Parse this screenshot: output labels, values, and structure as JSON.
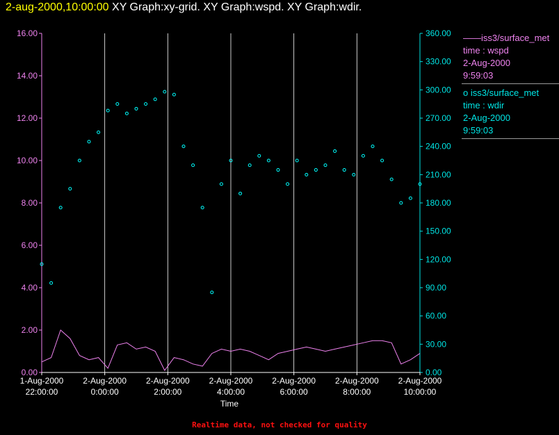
{
  "header": {
    "timestamp": "2-aug-2000,10:00:00",
    "description": "XY Graph:xy-grid.  XY Graph:wspd.  XY Graph:wdir."
  },
  "legend": {
    "series": [
      {
        "marker": "——",
        "source": "iss3/surface_met",
        "var": "time : wspd",
        "date": "2-Aug-2000",
        "time": "9:59:03"
      },
      {
        "marker": "o",
        "source": "iss3/surface_met",
        "var": "time : wdir",
        "date": "2-Aug-2000",
        "time": "9:59:03"
      }
    ]
  },
  "footer_note": "Realtime data, not checked for quality",
  "colors": {
    "wspd": "#ee82ee",
    "wdir": "#00ffff",
    "grid": "#ffffff",
    "left_axis": "#ee82ee",
    "right_axis": "#00e5e5"
  },
  "chart_data": {
    "type": "line",
    "xlabel": "Time",
    "xlim_hours": [
      0,
      12
    ],
    "x_ticks": [
      {
        "h": 0,
        "date": "1-Aug-2000",
        "time": "22:00:00"
      },
      {
        "h": 2,
        "date": "2-Aug-2000",
        "time": "0:00:00"
      },
      {
        "h": 4,
        "date": "2-Aug-2000",
        "time": "2:00:00"
      },
      {
        "h": 6,
        "date": "2-Aug-2000",
        "time": "4:00:00"
      },
      {
        "h": 8,
        "date": "2-Aug-2000",
        "time": "6:00:00"
      },
      {
        "h": 10,
        "date": "2-Aug-2000",
        "time": "8:00:00"
      },
      {
        "h": 12,
        "date": "2-Aug-2000",
        "time": "10:00:00"
      }
    ],
    "y_left": {
      "lim": [
        0,
        16
      ],
      "ticks": [
        "0.00",
        "2.00",
        "4.00",
        "6.00",
        "8.00",
        "10.00",
        "12.00",
        "14.00",
        "16.00"
      ]
    },
    "y_right": {
      "lim": [
        0,
        360
      ],
      "ticks": [
        "0.00",
        "30.00",
        "60.00",
        "90.00",
        "120.00",
        "150.00",
        "180.00",
        "210.00",
        "240.00",
        "270.00",
        "300.00",
        "330.00",
        "360.00"
      ]
    },
    "grid": "vertical",
    "series": [
      {
        "name": "wspd",
        "axis": "left",
        "style": "line",
        "x": [
          0,
          0.3,
          0.6,
          0.9,
          1.2,
          1.5,
          1.8,
          2.1,
          2.4,
          2.7,
          3.0,
          3.3,
          3.6,
          3.9,
          4.2,
          4.5,
          4.8,
          5.1,
          5.4,
          5.7,
          6.0,
          6.3,
          6.6,
          6.9,
          7.2,
          7.5,
          7.8,
          8.1,
          8.4,
          8.7,
          9.0,
          9.3,
          9.6,
          9.9,
          10.2,
          10.5,
          10.8,
          11.1,
          11.4,
          11.7,
          12.0
        ],
        "y": [
          0.5,
          0.7,
          2.0,
          1.6,
          0.8,
          0.6,
          0.7,
          0.2,
          1.3,
          1.4,
          1.1,
          1.2,
          1.0,
          0.1,
          0.7,
          0.6,
          0.4,
          0.3,
          0.9,
          1.1,
          1.0,
          1.1,
          1.0,
          0.8,
          0.6,
          0.9,
          1.0,
          1.1,
          1.2,
          1.1,
          1.0,
          1.1,
          1.2,
          1.3,
          1.4,
          1.5,
          1.5,
          1.4,
          0.4,
          0.6,
          0.9
        ]
      },
      {
        "name": "wdir",
        "axis": "right",
        "style": "points",
        "x": [
          0,
          0.3,
          0.6,
          0.9,
          1.2,
          1.5,
          1.8,
          2.1,
          2.4,
          2.7,
          3.0,
          3.3,
          3.6,
          3.9,
          4.2,
          4.5,
          4.8,
          5.1,
          5.4,
          5.7,
          6.0,
          6.3,
          6.6,
          6.9,
          7.2,
          7.5,
          7.8,
          8.1,
          8.4,
          8.7,
          9.0,
          9.3,
          9.6,
          9.9,
          10.2,
          10.5,
          10.8,
          11.1,
          11.4,
          11.7,
          12.0
        ],
        "y": [
          115,
          95,
          175,
          195,
          225,
          245,
          255,
          278,
          285,
          275,
          280,
          285,
          290,
          298,
          295,
          240,
          220,
          175,
          85,
          200,
          225,
          190,
          220,
          230,
          225,
          215,
          200,
          225,
          210,
          215,
          220,
          235,
          215,
          210,
          230,
          240,
          225,
          205,
          180,
          185,
          200
        ]
      }
    ]
  }
}
